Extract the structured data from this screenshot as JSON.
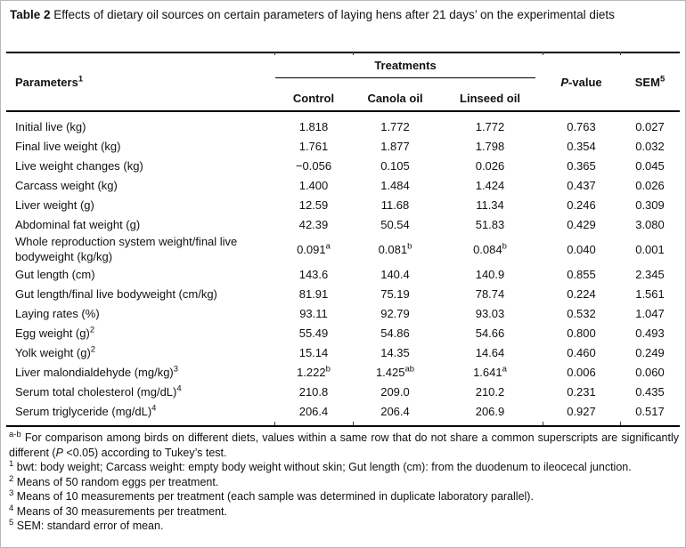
{
  "title": {
    "label": "Table 2",
    "text": " Effects of dietary oil sources on certain parameters of laying hens after 21 days’ on the experimental diets"
  },
  "table": {
    "header": {
      "parameters": "Parameters",
      "parameters_sup": "1",
      "treatments": "Treatments",
      "columns": [
        "Control",
        "Canola oil",
        "Linseed oil"
      ],
      "pvalue_italic": "P",
      "pvalue_rest": "-value",
      "sem": "SEM",
      "sem_sup": "5"
    },
    "rows": [
      {
        "param": "Initial live (kg)",
        "values": [
          {
            "v": "1.818"
          },
          {
            "v": "1.772"
          },
          {
            "v": "1.772"
          }
        ],
        "pvalue": "0.763",
        "sem": "0.027"
      },
      {
        "param": "Final live weight (kg)",
        "values": [
          {
            "v": "1.761"
          },
          {
            "v": "1.877"
          },
          {
            "v": "1.798"
          }
        ],
        "pvalue": "0.354",
        "sem": "0.032"
      },
      {
        "param": "Live weight changes (kg)",
        "values": [
          {
            "v": "−0.056"
          },
          {
            "v": "0.105"
          },
          {
            "v": "0.026"
          }
        ],
        "pvalue": "0.365",
        "sem": "0.045"
      },
      {
        "param": "Carcass weight (kg)",
        "values": [
          {
            "v": "1.400"
          },
          {
            "v": "1.484"
          },
          {
            "v": "1.424"
          }
        ],
        "pvalue": "0.437",
        "sem": "0.026"
      },
      {
        "param": "Liver weight (g)",
        "values": [
          {
            "v": "12.59"
          },
          {
            "v": "11.68"
          },
          {
            "v": "11.34"
          }
        ],
        "pvalue": "0.246",
        "sem": "0.309"
      },
      {
        "param": "Abdominal fat weight (g)",
        "values": [
          {
            "v": "42.39"
          },
          {
            "v": "50.54"
          },
          {
            "v": "51.83"
          }
        ],
        "pvalue": "0.429",
        "sem": "3.080"
      },
      {
        "param": "Whole reproduction system weight/final live bodyweight (kg/kg)",
        "values": [
          {
            "v": "0.091",
            "s": "a"
          },
          {
            "v": "0.081",
            "s": "b"
          },
          {
            "v": "0.084",
            "s": "b"
          }
        ],
        "pvalue": "0.040",
        "sem": "0.001"
      },
      {
        "param": "Gut length (cm)",
        "values": [
          {
            "v": "143.6"
          },
          {
            "v": "140.4"
          },
          {
            "v": "140.9"
          }
        ],
        "pvalue": "0.855",
        "sem": "2.345"
      },
      {
        "param": "Gut length/final live bodyweight (cm/kg)",
        "values": [
          {
            "v": "81.91"
          },
          {
            "v": "75.19"
          },
          {
            "v": "78.74"
          }
        ],
        "pvalue": "0.224",
        "sem": "1.561"
      },
      {
        "param": "Laying rates (%)",
        "values": [
          {
            "v": "93.11"
          },
          {
            "v": "92.79"
          },
          {
            "v": "93.03"
          }
        ],
        "pvalue": "0.532",
        "sem": "1.047"
      },
      {
        "param": "Egg weight (g)",
        "param_sup": "2",
        "values": [
          {
            "v": "55.49"
          },
          {
            "v": "54.86"
          },
          {
            "v": "54.66"
          }
        ],
        "pvalue": "0.800",
        "sem": "0.493"
      },
      {
        "param": "Yolk weight (g)",
        "param_sup": "2",
        "values": [
          {
            "v": "15.14"
          },
          {
            "v": "14.35"
          },
          {
            "v": "14.64"
          }
        ],
        "pvalue": "0.460",
        "sem": "0.249"
      },
      {
        "param": "Liver malondialdehyde (mg/kg)",
        "param_sup": "3",
        "values": [
          {
            "v": "1.222",
            "s": "b"
          },
          {
            "v": "1.425",
            "s": "ab"
          },
          {
            "v": "1.641",
            "s": "a"
          }
        ],
        "pvalue": "0.006",
        "sem": "0.060"
      },
      {
        "param": "Serum total cholesterol (mg/dL)",
        "param_sup": "4",
        "values": [
          {
            "v": "210.8"
          },
          {
            "v": "209.0"
          },
          {
            "v": "210.2"
          }
        ],
        "pvalue": "0.231",
        "sem": "0.435"
      },
      {
        "param": "Serum triglyceride (mg/dL)",
        "param_sup": "4",
        "values": [
          {
            "v": "206.4"
          },
          {
            "v": "206.4"
          },
          {
            "v": "206.9"
          }
        ],
        "pvalue": "0.927",
        "sem": "0.517"
      }
    ]
  },
  "footnotes": [
    {
      "marker": "a-b",
      "parts": [
        {
          "t": "For comparison among birds on different diets, values within a same row that do not share a common superscripts are significantly different ("
        },
        {
          "t": "P",
          "italic": true
        },
        {
          "t": " <0.05) according to Tukey’s test."
        }
      ]
    },
    {
      "marker": "1",
      "parts": [
        {
          "t": "bwt: body weight; Carcass weight: empty body weight without skin; Gut length (cm): from the duodenum to ileocecal junction."
        }
      ]
    },
    {
      "marker": "2",
      "parts": [
        {
          "t": "Means of 50 random eggs per treatment."
        }
      ]
    },
    {
      "marker": "3",
      "parts": [
        {
          "t": "Means of 10 measurements per treatment (each sample was determined in duplicate laboratory parallel)."
        }
      ]
    },
    {
      "marker": "4",
      "parts": [
        {
          "t": "Means of 30 measurements per treatment."
        }
      ]
    },
    {
      "marker": "5",
      "parts": [
        {
          "t": "SEM: standard error of mean."
        }
      ]
    }
  ],
  "colors": {
    "text": "#111111",
    "border": "#000000",
    "frame": "#b9b9b9"
  }
}
